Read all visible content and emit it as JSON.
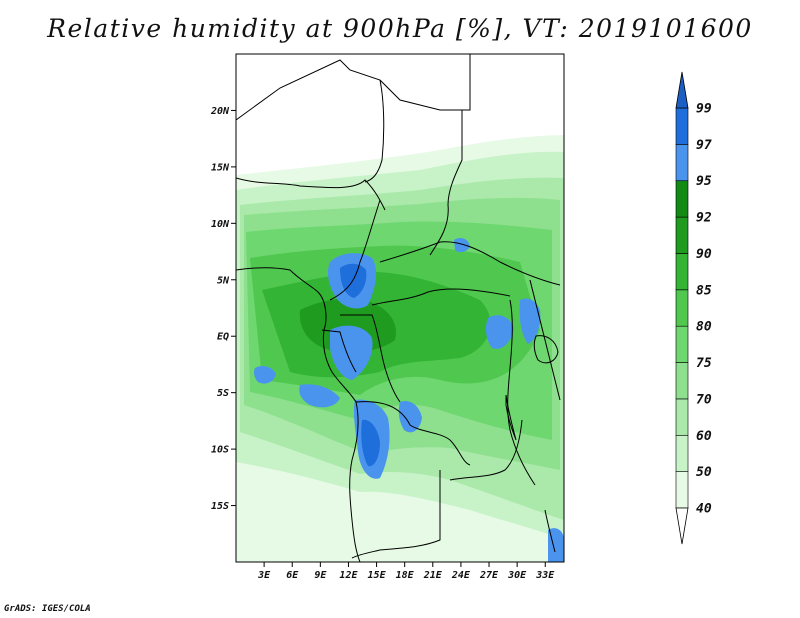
{
  "title": "Relative humidity at 900hPa [%], VT: 2019101600",
  "credit": "GrADS: IGES/COLA",
  "map": {
    "projection": "lat-lon",
    "lon_range": [
      0,
      35
    ],
    "lat_range": [
      -20,
      25
    ],
    "lat_ticks": [
      {
        "value": 20,
        "label": "20N"
      },
      {
        "value": 15,
        "label": "15N"
      },
      {
        "value": 10,
        "label": "10N"
      },
      {
        "value": 5,
        "label": "5N"
      },
      {
        "value": 0,
        "label": "EQ"
      },
      {
        "value": -5,
        "label": "5S"
      },
      {
        "value": -10,
        "label": "10S"
      },
      {
        "value": -15,
        "label": "15S"
      }
    ],
    "lon_ticks": [
      {
        "value": 3,
        "label": "3E"
      },
      {
        "value": 6,
        "label": "6E"
      },
      {
        "value": 9,
        "label": "9E"
      },
      {
        "value": 12,
        "label": "12E"
      },
      {
        "value": 15,
        "label": "15E"
      },
      {
        "value": 18,
        "label": "18E"
      },
      {
        "value": 21,
        "label": "21E"
      },
      {
        "value": 24,
        "label": "24E"
      },
      {
        "value": 27,
        "label": "27E"
      },
      {
        "value": 30,
        "label": "30E"
      },
      {
        "value": 33,
        "label": "33E"
      }
    ]
  },
  "colorbar": {
    "levels": [
      {
        "label": "40",
        "color": "#ffffff"
      },
      {
        "label": "50",
        "color": "#e6fae6"
      },
      {
        "label": "60",
        "color": "#c8f2c8"
      },
      {
        "label": "70",
        "color": "#aae9aa"
      },
      {
        "label": "75",
        "color": "#8ee08e"
      },
      {
        "label": "80",
        "color": "#6fd76f"
      },
      {
        "label": "85",
        "color": "#50c850"
      },
      {
        "label": "90",
        "color": "#34b434"
      },
      {
        "label": "92",
        "color": "#1f9b1f"
      },
      {
        "label": "95",
        "color": "#138a13"
      },
      {
        "label": "97",
        "color": "#4a94ee"
      },
      {
        "label": "99",
        "color": "#1e6fdc"
      }
    ],
    "over_color": "#1c5fc4",
    "under_color": "#ffffff"
  }
}
